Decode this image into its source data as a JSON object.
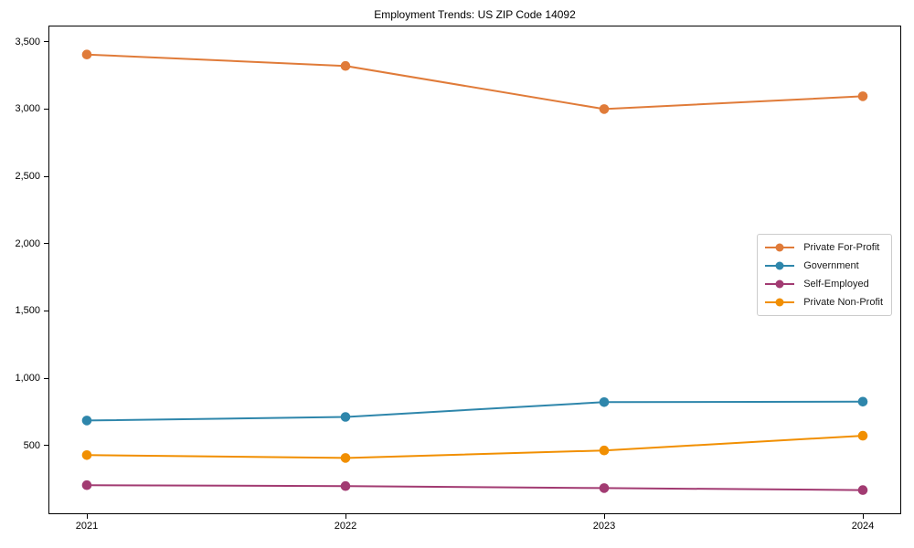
{
  "chart_data": {
    "type": "line",
    "title": "Employment Trends: US ZIP Code 14092",
    "xlabel": "",
    "ylabel": "",
    "grid": false,
    "legend_position": "center-right",
    "x": [
      2021,
      2022,
      2023,
      2024
    ],
    "x_tick_labels": [
      "2021",
      "2022",
      "2023",
      "2024"
    ],
    "y_tick_values": [
      500,
      1000,
      1500,
      2000,
      2500,
      3000,
      3500
    ],
    "y_tick_labels": [
      "500",
      "1,000",
      "1,500",
      "2,000",
      "2,500",
      "3,000",
      "3,500"
    ],
    "ylim": [
      -11,
      3620
    ],
    "series": [
      {
        "name": "Private For-Profit",
        "color": "#E07B39",
        "values": [
          3405,
          3320,
          3000,
          3095
        ]
      },
      {
        "name": "Government",
        "color": "#2E86AB",
        "values": [
          685,
          712,
          822,
          825
        ]
      },
      {
        "name": "Self-Employed",
        "color": "#A23B72",
        "values": [
          205,
          198,
          183,
          168
        ]
      },
      {
        "name": "Private Non-Profit",
        "color": "#F18F01",
        "values": [
          428,
          407,
          463,
          572
        ]
      }
    ]
  }
}
